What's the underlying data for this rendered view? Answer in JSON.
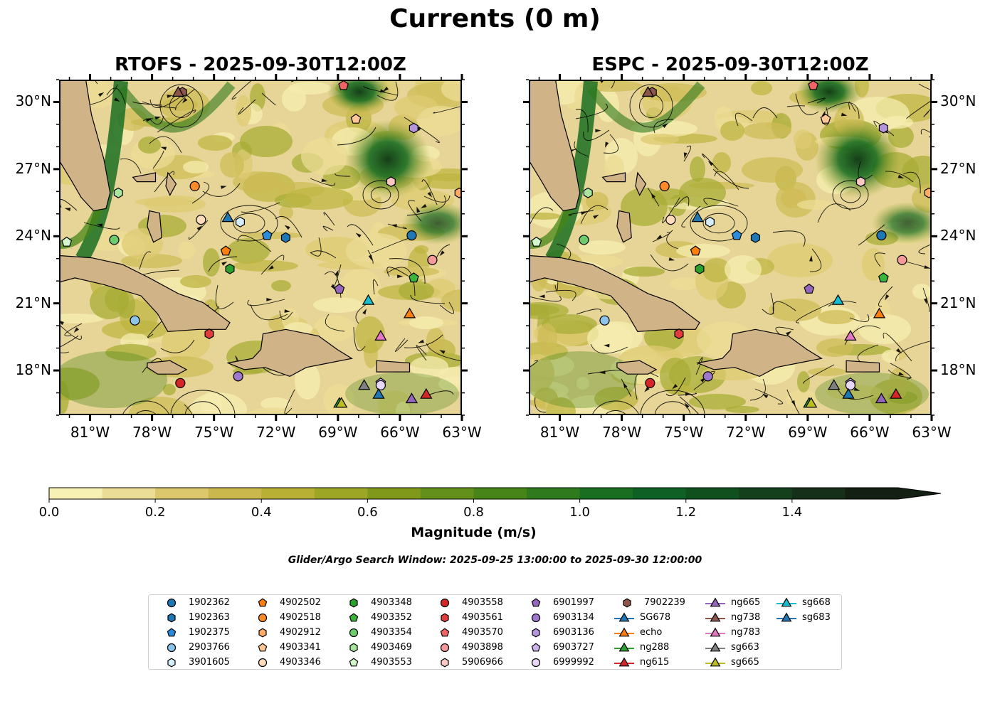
{
  "title": "Currents (0 m)",
  "panels": [
    {
      "title": "RTOFS - 2025-09-30T12:00Z"
    },
    {
      "title": "ESPC - 2025-09-30T12:00Z"
    }
  ],
  "colorbar": {
    "label": "Magnitude (m/s)",
    "ticks": [
      "0.0",
      "0.2",
      "0.4",
      "0.6",
      "0.8",
      "1.0",
      "1.2",
      "1.4"
    ],
    "colors": [
      "#f8f1b4",
      "#ecdd96",
      "#dcc86c",
      "#cbb84c",
      "#b7b034",
      "#9ea626",
      "#80991a",
      "#63901a",
      "#478518",
      "#2f7a1c",
      "#1a6e22",
      "#0f6024",
      "#10501f",
      "#15401c",
      "#162f18",
      "#131f12"
    ],
    "extend": "max"
  },
  "search_window": "Glider/Argo Search Window: 2025-09-25 13:00:00 to 2025-09-30 12:00:00",
  "chart_data": {
    "type": "map",
    "xlim": [
      -82.5,
      -63
    ],
    "ylim": [
      16,
      31
    ],
    "x_ticks": [
      "81°W",
      "78°W",
      "75°W",
      "72°W",
      "69°W",
      "66°W",
      "63°W"
    ],
    "x_tick_values": [
      -81,
      -78,
      -75,
      -72,
      -69,
      -66,
      -63
    ],
    "y_ticks": [
      "30°N",
      "27°N",
      "24°N",
      "21°N",
      "18°N"
    ],
    "y_tick_values": [
      30,
      27,
      24,
      21,
      18
    ],
    "legend": [
      {
        "label": "1902362",
        "marker": "circle",
        "color": "#1f77b4"
      },
      {
        "label": "1902363",
        "marker": "hexagon",
        "color": "#1f77b4"
      },
      {
        "label": "1902375",
        "marker": "pentagon",
        "color": "#2b8cdc"
      },
      {
        "label": "2903766",
        "marker": "circle",
        "color": "#8ec3ea"
      },
      {
        "label": "3901605",
        "marker": "hexagon",
        "color": "#d6ecfa"
      },
      {
        "label": "4902502",
        "marker": "pentagon",
        "color": "#ff7f0e"
      },
      {
        "label": "4902518",
        "marker": "circle",
        "color": "#ff8a2a"
      },
      {
        "label": "4902912",
        "marker": "hexagon",
        "color": "#ffab66"
      },
      {
        "label": "4903341",
        "marker": "pentagon",
        "color": "#ffc896"
      },
      {
        "label": "4903346",
        "marker": "circle",
        "color": "#ffdcbc"
      },
      {
        "label": "4903348",
        "marker": "hexagon",
        "color": "#2ca02c"
      },
      {
        "label": "4903352",
        "marker": "pentagon",
        "color": "#3cb43c"
      },
      {
        "label": "4903354",
        "marker": "circle",
        "color": "#6ccc6c"
      },
      {
        "label": "4903469",
        "marker": "hexagon",
        "color": "#a8e6a0"
      },
      {
        "label": "4903553",
        "marker": "pentagon",
        "color": "#d4f6cc"
      },
      {
        "label": "4903558",
        "marker": "circle",
        "color": "#d62728"
      },
      {
        "label": "4903561",
        "marker": "hexagon",
        "color": "#e03c3c"
      },
      {
        "label": "4903570",
        "marker": "pentagon",
        "color": "#f06464"
      },
      {
        "label": "4903898",
        "marker": "circle",
        "color": "#f49a9a"
      },
      {
        "label": "5906966",
        "marker": "hexagon",
        "color": "#fbc8c4"
      },
      {
        "label": "6901997",
        "marker": "pentagon",
        "color": "#9467bd"
      },
      {
        "label": "6903134",
        "marker": "circle",
        "color": "#9e78cc"
      },
      {
        "label": "6903136",
        "marker": "hexagon",
        "color": "#b596dc"
      },
      {
        "label": "6903727",
        "marker": "pentagon",
        "color": "#ccb4ec"
      },
      {
        "label": "6999992",
        "marker": "circle",
        "color": "#e8d8f8"
      },
      {
        "label": "7902239",
        "marker": "hexagon",
        "color": "#8c564b"
      },
      {
        "label": "SG678",
        "marker": "triangle",
        "color": "#1f77b4"
      },
      {
        "label": "echo",
        "marker": "triangle",
        "color": "#ff7f0e"
      },
      {
        "label": "ng288",
        "marker": "triangle",
        "color": "#2ca02c"
      },
      {
        "label": "ng615",
        "marker": "triangle",
        "color": "#d62728"
      },
      {
        "label": "ng665",
        "marker": "triangle",
        "color": "#9467bd"
      },
      {
        "label": "ng738",
        "marker": "triangle",
        "color": "#8c564b"
      },
      {
        "label": "ng783",
        "marker": "triangle",
        "color": "#e377c2"
      },
      {
        "label": "sg663",
        "marker": "triangle",
        "color": "#7f7f7f"
      },
      {
        "label": "sg665",
        "marker": "triangle",
        "color": "#bcbd22"
      },
      {
        "label": "sg668",
        "marker": "triangle",
        "color": "#17becf"
      },
      {
        "label": "sg683",
        "marker": "triangle",
        "color": "#1f77b4"
      }
    ],
    "platforms": [
      {
        "id": "1902362",
        "lon": -65.5,
        "lat": 24.1
      },
      {
        "id": "1902363",
        "lon": -71.6,
        "lat": 24.0
      },
      {
        "id": "1902375",
        "lon": -72.5,
        "lat": 24.1
      },
      {
        "id": "2903766",
        "lon": -78.9,
        "lat": 20.3
      },
      {
        "id": "3901605",
        "lon": -73.8,
        "lat": 24.7
      },
      {
        "id": "4902502",
        "lon": -74.5,
        "lat": 23.4
      },
      {
        "id": "4902518",
        "lon": -76.0,
        "lat": 26.3
      },
      {
        "id": "4902912",
        "lon": -63.2,
        "lat": 26.0
      },
      {
        "id": "4903341",
        "lon": -68.2,
        "lat": 29.3
      },
      {
        "id": "4903346",
        "lon": -75.7,
        "lat": 24.8
      },
      {
        "id": "4903348",
        "lon": -74.3,
        "lat": 22.6
      },
      {
        "id": "4903352",
        "lon": -65.4,
        "lat": 22.2
      },
      {
        "id": "4903354",
        "lon": -79.9,
        "lat": 23.9
      },
      {
        "id": "4903469",
        "lon": -79.7,
        "lat": 26.0
      },
      {
        "id": "4903553",
        "lon": -82.2,
        "lat": 23.8
      },
      {
        "id": "4903558",
        "lon": -76.7,
        "lat": 17.5
      },
      {
        "id": "4903561",
        "lon": -75.3,
        "lat": 19.7
      },
      {
        "id": "4903570",
        "lon": -68.8,
        "lat": 30.8
      },
      {
        "id": "4903898",
        "lon": -64.5,
        "lat": 23.0
      },
      {
        "id": "5906966",
        "lon": -66.5,
        "lat": 26.5
      },
      {
        "id": "6901997",
        "lon": -69.0,
        "lat": 21.7
      },
      {
        "id": "6903134",
        "lon": -73.9,
        "lat": 17.8
      },
      {
        "id": "6903136",
        "lon": -65.4,
        "lat": 28.9
      },
      {
        "id": "6903727",
        "lon": -67.0,
        "lat": 17.5
      },
      {
        "id": "6999992",
        "lon": -67.0,
        "lat": 17.4
      },
      {
        "id": "7902239",
        "lon": -76.6,
        "lat": 30.5
      },
      {
        "id": "SG678",
        "lon": -74.4,
        "lat": 24.9
      },
      {
        "id": "echo",
        "lon": -65.6,
        "lat": 20.6
      },
      {
        "id": "ng288",
        "lon": -69.0,
        "lat": 16.6
      },
      {
        "id": "ng615",
        "lon": -64.8,
        "lat": 17.0
      },
      {
        "id": "ng665",
        "lon": -65.5,
        "lat": 16.8
      },
      {
        "id": "ng738",
        "lon": -76.8,
        "lat": 30.5
      },
      {
        "id": "ng783",
        "lon": -67.0,
        "lat": 19.6
      },
      {
        "id": "sg663",
        "lon": -67.8,
        "lat": 17.4
      },
      {
        "id": "sg665",
        "lon": -68.9,
        "lat": 16.6
      },
      {
        "id": "sg668",
        "lon": -67.6,
        "lat": 21.2
      },
      {
        "id": "sg683",
        "lon": -67.1,
        "lat": 17.0
      }
    ]
  }
}
